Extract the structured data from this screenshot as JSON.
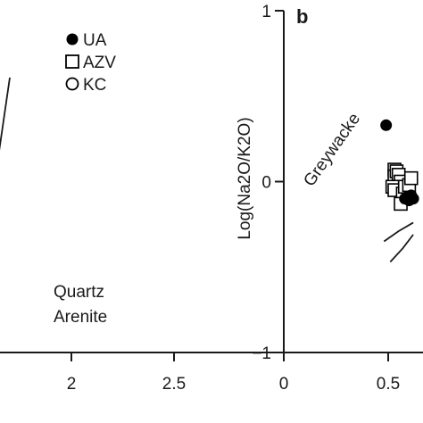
{
  "chart_data": [
    {
      "panel": "a",
      "type": "scatter",
      "x_ticks": [
        {
          "value": 2,
          "label": "2"
        },
        {
          "value": 2.5,
          "label": "2.5"
        }
      ],
      "xlim": [
        1.08,
        2.64
      ],
      "ylim": [
        0,
        1
      ],
      "legend": {
        "placement": "top-right",
        "entries": [
          {
            "label": "UA",
            "marker": "filled-circle"
          },
          {
            "label": "AZV",
            "marker": "open-square"
          },
          {
            "label": "KC",
            "marker": "open-circle"
          }
        ]
      },
      "field_label_lines": [
        "Quartz",
        "Arenite"
      ],
      "boundary_lines": [
        {
          "points": [
            [
              1.7,
              0.78
            ],
            [
              1.53,
              0.1
            ]
          ]
        },
        {
          "points": [
            [
              1.08,
              0.555
            ],
            [
              1.6,
              0.555
            ]
          ]
        }
      ]
    },
    {
      "panel": "b",
      "panel_letter": "b",
      "type": "scatter",
      "ylabel": "Log(Na2O/K2O)",
      "x_ticks": [
        {
          "value": 0,
          "label": "0"
        },
        {
          "value": 0.5,
          "label": "0.5"
        }
      ],
      "y_ticks": [
        {
          "value": 1,
          "label": "1"
        },
        {
          "value": 0,
          "label": "0"
        },
        {
          "value": -1,
          "label": "−1"
        }
      ],
      "xlim": [
        0,
        0.62
      ],
      "ylim": [
        -1,
        1
      ],
      "grid": false,
      "annotations": [
        {
          "text": "Greywacke",
          "x": 0.2,
          "y": 0.2,
          "rotation": -55
        }
      ],
      "series": [
        {
          "name": "UA",
          "marker": "filled-circle",
          "points": [
            [
              0.49,
              0.33
            ],
            [
              0.58,
              -0.1
            ],
            [
              0.59,
              -0.09
            ],
            [
              0.6,
              -0.11
            ],
            [
              0.61,
              -0.08
            ],
            [
              0.62,
              -0.1
            ]
          ]
        },
        {
          "name": "AZV",
          "marker": "open-square",
          "points": [
            [
              0.53,
              0.07
            ],
            [
              0.53,
              0.03
            ],
            [
              0.54,
              0.06
            ],
            [
              0.55,
              0.04
            ],
            [
              0.56,
              0.0
            ],
            [
              0.52,
              -0.03
            ],
            [
              0.53,
              -0.05
            ],
            [
              0.57,
              -0.07
            ],
            [
              0.56,
              -0.13
            ],
            [
              0.58,
              -0.03
            ],
            [
              0.6,
              -0.02
            ],
            [
              0.61,
              0.02
            ]
          ]
        }
      ],
      "boundary_lines": [
        {
          "points": [
            [
              0.48,
              -0.35
            ],
            [
              0.55,
              -0.29
            ],
            [
              0.62,
              -0.24
            ]
          ]
        },
        {
          "points": [
            [
              0.51,
              -0.47
            ],
            [
              0.57,
              -0.39
            ],
            [
              0.62,
              -0.31
            ]
          ]
        }
      ]
    }
  ]
}
